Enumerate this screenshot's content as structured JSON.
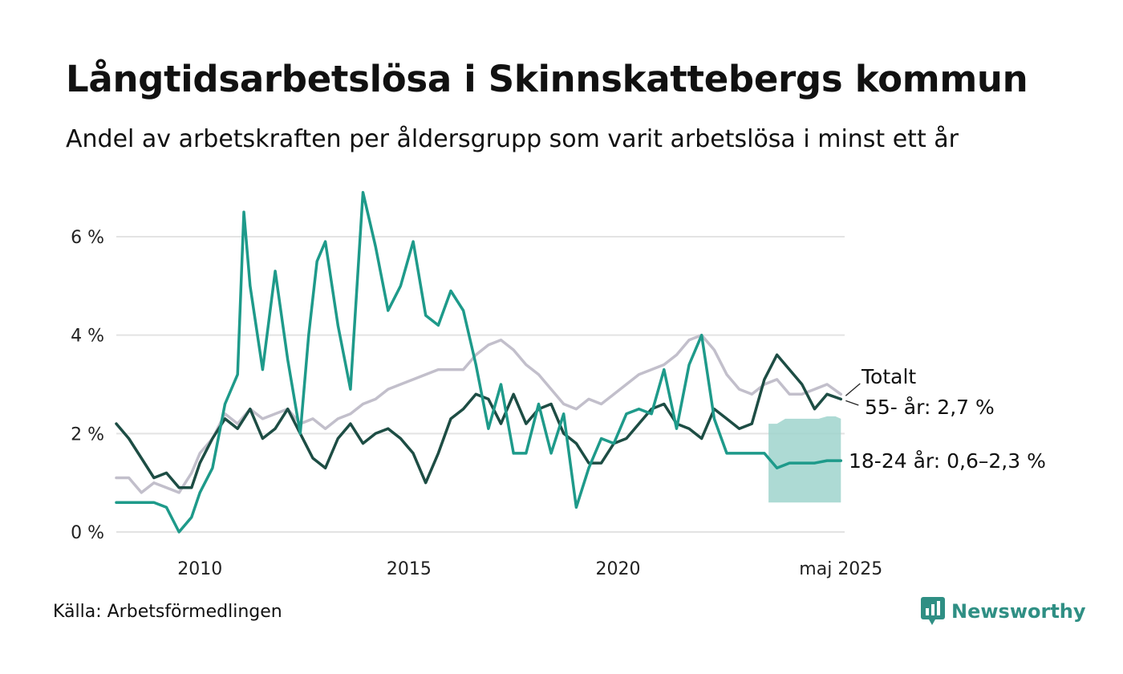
{
  "title": "Långtidsarbetslösa i Skinnskattebergs kommun",
  "subtitle": "Andel av arbetskraften per åldersgrupp som varit arbetslösa i minst ett år",
  "source": "Källa: Arbetsförmedlingen",
  "brand": {
    "name": "Newsworthy",
    "icon": "newsworthy-logo-icon",
    "color": "#2f8f84"
  },
  "chart_data": {
    "type": "line",
    "xlim": [
      2008.0,
      2025.42
    ],
    "ylim": [
      0,
      7
    ],
    "y_ticks": [
      0,
      2,
      4,
      6
    ],
    "y_tick_labels": [
      "0 %",
      "2 %",
      "4 %",
      "6 %"
    ],
    "x_ticks": [
      2010,
      2015,
      2020,
      2025.33
    ],
    "x_tick_labels": [
      "2010",
      "2015",
      "2020",
      "maj 2025"
    ],
    "grid": true,
    "colors": {
      "totalt": "#c2bfcb",
      "old": "#1d4d44",
      "young": "#1e9a8a",
      "band": "#9fd4cc",
      "grid": "#e3e3e3"
    },
    "labels": {
      "totalt": "Totalt",
      "old": "55- år: 2,7 %",
      "young": "18-24 år: 0,6–2,3 %"
    },
    "series": [
      {
        "key": "totalt",
        "x": [
          2008.0,
          2008.3,
          2008.6,
          2008.9,
          2009.2,
          2009.5,
          2009.8,
          2010.0,
          2010.3,
          2010.6,
          2010.9,
          2011.2,
          2011.5,
          2011.8,
          2012.1,
          2012.4,
          2012.7,
          2013.0,
          2013.3,
          2013.6,
          2013.9,
          2014.2,
          2014.5,
          2014.8,
          2015.1,
          2015.4,
          2015.7,
          2016.0,
          2016.3,
          2016.6,
          2016.9,
          2017.2,
          2017.5,
          2017.8,
          2018.1,
          2018.4,
          2018.7,
          2019.0,
          2019.3,
          2019.6,
          2019.9,
          2020.2,
          2020.5,
          2020.8,
          2021.1,
          2021.4,
          2021.7,
          2022.0,
          2022.3,
          2022.6,
          2022.9,
          2023.2,
          2023.5,
          2023.8,
          2024.1,
          2024.4,
          2024.7,
          2025.0,
          2025.33
        ],
        "values": [
          1.1,
          1.1,
          0.8,
          1.0,
          0.9,
          0.8,
          1.2,
          1.6,
          1.9,
          2.4,
          2.2,
          2.5,
          2.3,
          2.4,
          2.5,
          2.2,
          2.3,
          2.1,
          2.3,
          2.4,
          2.6,
          2.7,
          2.9,
          3.0,
          3.1,
          3.2,
          3.3,
          3.3,
          3.3,
          3.6,
          3.8,
          3.9,
          3.7,
          3.4,
          3.2,
          2.9,
          2.6,
          2.5,
          2.7,
          2.6,
          2.8,
          3.0,
          3.2,
          3.3,
          3.4,
          3.6,
          3.9,
          4.0,
          3.7,
          3.2,
          2.9,
          2.8,
          3.0,
          3.1,
          2.8,
          2.8,
          2.9,
          3.0,
          2.8
        ]
      },
      {
        "key": "old",
        "x": [
          2008.0,
          2008.3,
          2008.6,
          2008.9,
          2009.2,
          2009.5,
          2009.8,
          2010.0,
          2010.3,
          2010.6,
          2010.9,
          2011.2,
          2011.5,
          2011.8,
          2012.1,
          2012.4,
          2012.7,
          2013.0,
          2013.3,
          2013.6,
          2013.9,
          2014.2,
          2014.5,
          2014.8,
          2015.1,
          2015.4,
          2015.7,
          2016.0,
          2016.3,
          2016.6,
          2016.9,
          2017.2,
          2017.5,
          2017.8,
          2018.1,
          2018.4,
          2018.7,
          2019.0,
          2019.3,
          2019.6,
          2019.9,
          2020.2,
          2020.5,
          2020.8,
          2021.1,
          2021.4,
          2021.7,
          2022.0,
          2022.3,
          2022.6,
          2022.9,
          2023.2,
          2023.5,
          2023.8,
          2024.1,
          2024.4,
          2024.7,
          2025.0,
          2025.33
        ],
        "values": [
          2.2,
          1.9,
          1.5,
          1.1,
          1.2,
          0.9,
          0.9,
          1.4,
          1.9,
          2.3,
          2.1,
          2.5,
          1.9,
          2.1,
          2.5,
          2.0,
          1.5,
          1.3,
          1.9,
          2.2,
          1.8,
          2.0,
          2.1,
          1.9,
          1.6,
          1.0,
          1.6,
          2.3,
          2.5,
          2.8,
          2.7,
          2.2,
          2.8,
          2.2,
          2.5,
          2.6,
          2.0,
          1.8,
          1.4,
          1.4,
          1.8,
          1.9,
          2.2,
          2.5,
          2.6,
          2.2,
          2.1,
          1.9,
          2.5,
          2.3,
          2.1,
          2.2,
          3.1,
          3.6,
          3.3,
          3.0,
          2.5,
          2.8,
          2.7
        ]
      },
      {
        "key": "young",
        "x": [
          2008.0,
          2008.3,
          2008.6,
          2008.9,
          2009.2,
          2009.5,
          2009.8,
          2010.0,
          2010.3,
          2010.6,
          2010.9,
          2011.05,
          2011.2,
          2011.5,
          2011.8,
          2012.1,
          2012.4,
          2012.6,
          2012.8,
          2013.0,
          2013.3,
          2013.6,
          2013.9,
          2014.2,
          2014.5,
          2014.8,
          2015.1,
          2015.4,
          2015.7,
          2016.0,
          2016.3,
          2016.6,
          2016.9,
          2017.2,
          2017.5,
          2017.8,
          2018.1,
          2018.4,
          2018.7,
          2019.0,
          2019.3,
          2019.6,
          2019.9,
          2020.2,
          2020.5,
          2020.8,
          2021.1,
          2021.4,
          2021.7,
          2022.0,
          2022.3,
          2022.6,
          2022.9,
          2023.2,
          2023.5,
          2023.8,
          2024.1,
          2024.4,
          2024.7,
          2025.0,
          2025.33
        ],
        "values": [
          0.6,
          0.6,
          0.6,
          0.6,
          0.5,
          0.0,
          0.3,
          0.8,
          1.3,
          2.6,
          3.2,
          6.5,
          5.0,
          3.3,
          5.3,
          3.5,
          2.0,
          4.0,
          5.5,
          5.9,
          4.2,
          2.9,
          6.9,
          5.8,
          4.5,
          5.0,
          5.9,
          4.4,
          4.2,
          4.9,
          4.5,
          3.4,
          2.1,
          3.0,
          1.6,
          1.6,
          2.6,
          1.6,
          2.4,
          0.5,
          1.3,
          1.9,
          1.8,
          2.4,
          2.5,
          2.4,
          3.3,
          2.1,
          3.4,
          4.0,
          2.3,
          1.6,
          1.6,
          1.6,
          1.6,
          1.3,
          1.4,
          1.4,
          1.4,
          1.45,
          1.45
        ]
      }
    ],
    "band": {
      "series_key": "young",
      "x": [
        2023.6,
        2023.8,
        2024.0,
        2024.2,
        2024.4,
        2024.6,
        2024.8,
        2025.0,
        2025.2,
        2025.33
      ],
      "lower": [
        0.6,
        0.6,
        0.6,
        0.6,
        0.6,
        0.6,
        0.6,
        0.6,
        0.6,
        0.6
      ],
      "upper": [
        2.2,
        2.2,
        2.3,
        2.3,
        2.3,
        2.3,
        2.3,
        2.35,
        2.35,
        2.3
      ]
    }
  }
}
